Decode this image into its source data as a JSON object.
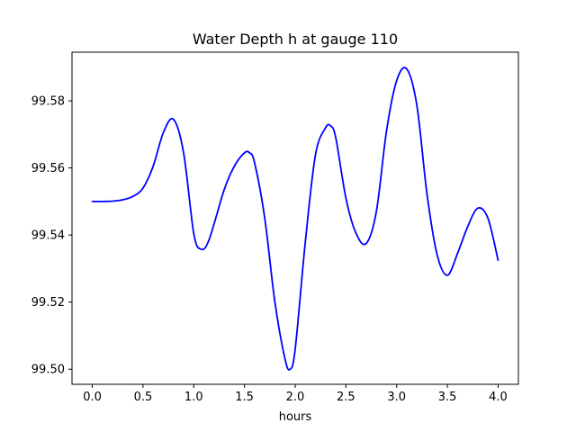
{
  "chart_data": {
    "type": "line",
    "title": "Water Depth h at gauge 110",
    "xlabel": "hours",
    "ylabel": "",
    "xlim": [
      -0.2,
      4.2
    ],
    "ylim": [
      99.4955,
      99.5945
    ],
    "xticks": [
      0.0,
      0.5,
      1.0,
      1.5,
      2.0,
      2.5,
      3.0,
      3.5,
      4.0
    ],
    "xtick_labels": [
      "0.0",
      "0.5",
      "1.0",
      "1.5",
      "2.0",
      "2.5",
      "3.0",
      "3.5",
      "4.0"
    ],
    "yticks": [
      99.5,
      99.52,
      99.54,
      99.56,
      99.58
    ],
    "ytick_labels": [
      "99.50",
      "99.52",
      "99.54",
      "99.56",
      "99.58"
    ],
    "grid": false,
    "color": "#0000ff",
    "series": [
      {
        "name": "",
        "x": [
          0.0,
          0.1,
          0.2,
          0.3,
          0.4,
          0.5,
          0.6,
          0.7,
          0.8,
          0.9,
          1.0,
          1.07,
          1.15,
          1.3,
          1.4,
          1.5,
          1.55,
          1.6,
          1.7,
          1.8,
          1.9,
          1.95,
          2.0,
          2.1,
          2.2,
          2.3,
          2.35,
          2.4,
          2.5,
          2.6,
          2.7,
          2.8,
          2.9,
          3.0,
          3.1,
          3.2,
          3.3,
          3.4,
          3.5,
          3.6,
          3.7,
          3.8,
          3.9,
          4.0
        ],
        "y": [
          99.55,
          99.55,
          99.5501,
          99.5505,
          99.5515,
          99.554,
          99.5605,
          99.5705,
          99.5745,
          99.5645,
          99.5405,
          99.5358,
          99.5385,
          99.5535,
          99.5605,
          99.5645,
          99.5645,
          99.5615,
          99.545,
          99.52,
          99.503,
          99.5,
          99.506,
          99.538,
          99.564,
          99.572,
          99.5725,
          99.569,
          99.551,
          99.5405,
          99.5375,
          99.547,
          99.571,
          99.586,
          99.5895,
          99.5785,
          99.552,
          99.534,
          99.528,
          99.5345,
          99.5425,
          99.548,
          99.545,
          99.5325
        ]
      }
    ]
  }
}
